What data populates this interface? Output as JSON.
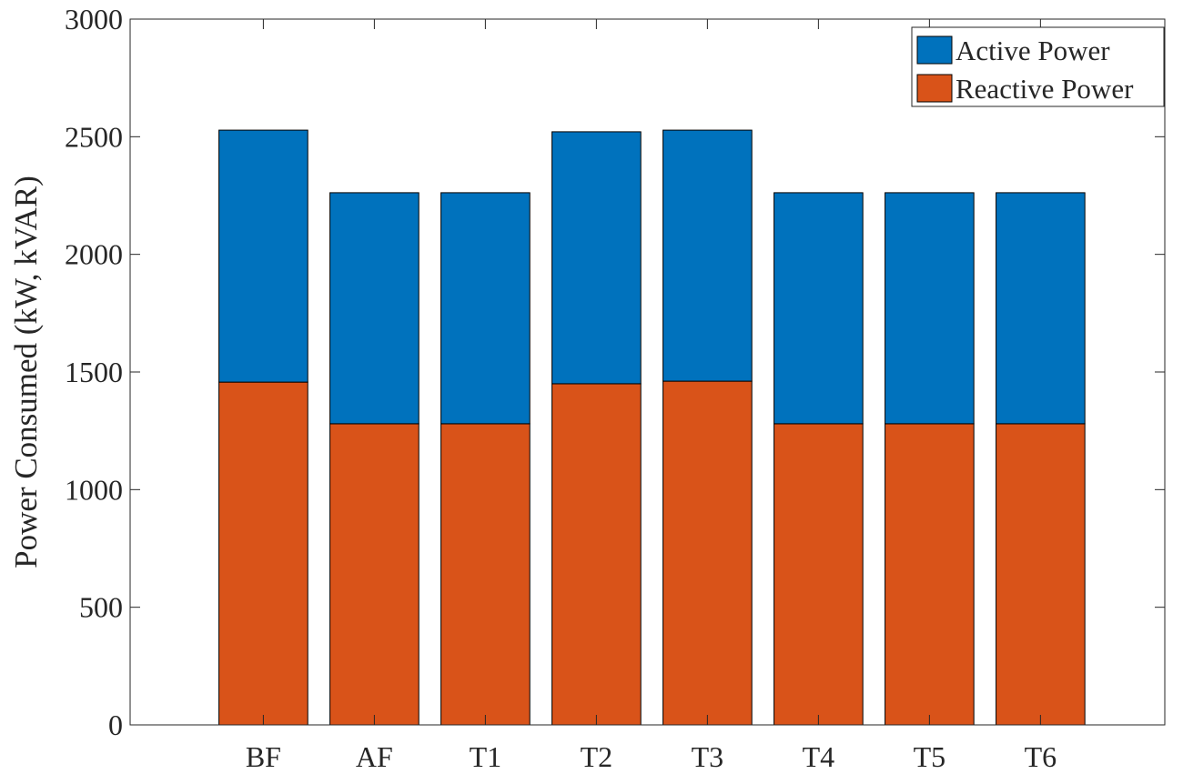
{
  "chart_data": {
    "type": "bar",
    "stacked": true,
    "title": "",
    "xlabel": "",
    "ylabel": "Power Consumed (kW, kVAR)",
    "categories": [
      "BF",
      "AF",
      "T1",
      "T2",
      "T3",
      "T4",
      "T5",
      "T6"
    ],
    "series": [
      {
        "name": "Reactive Power",
        "color": "#D95319",
        "values": [
          1457,
          1280,
          1280,
          1450,
          1461,
          1280,
          1280,
          1280
        ]
      },
      {
        "name": "Active Power",
        "color": "#0072BD",
        "values": [
          1071,
          982,
          982,
          1071,
          1067,
          982,
          982,
          982
        ]
      }
    ],
    "legend_order": [
      "Active Power",
      "Reactive Power"
    ],
    "legend_position": "top-right",
    "ylim": [
      0,
      3000
    ],
    "yticks": [
      0,
      500,
      1000,
      1500,
      2000,
      2500,
      3000
    ],
    "xlim": [
      -0.2,
      9.12
    ],
    "grid": false
  }
}
